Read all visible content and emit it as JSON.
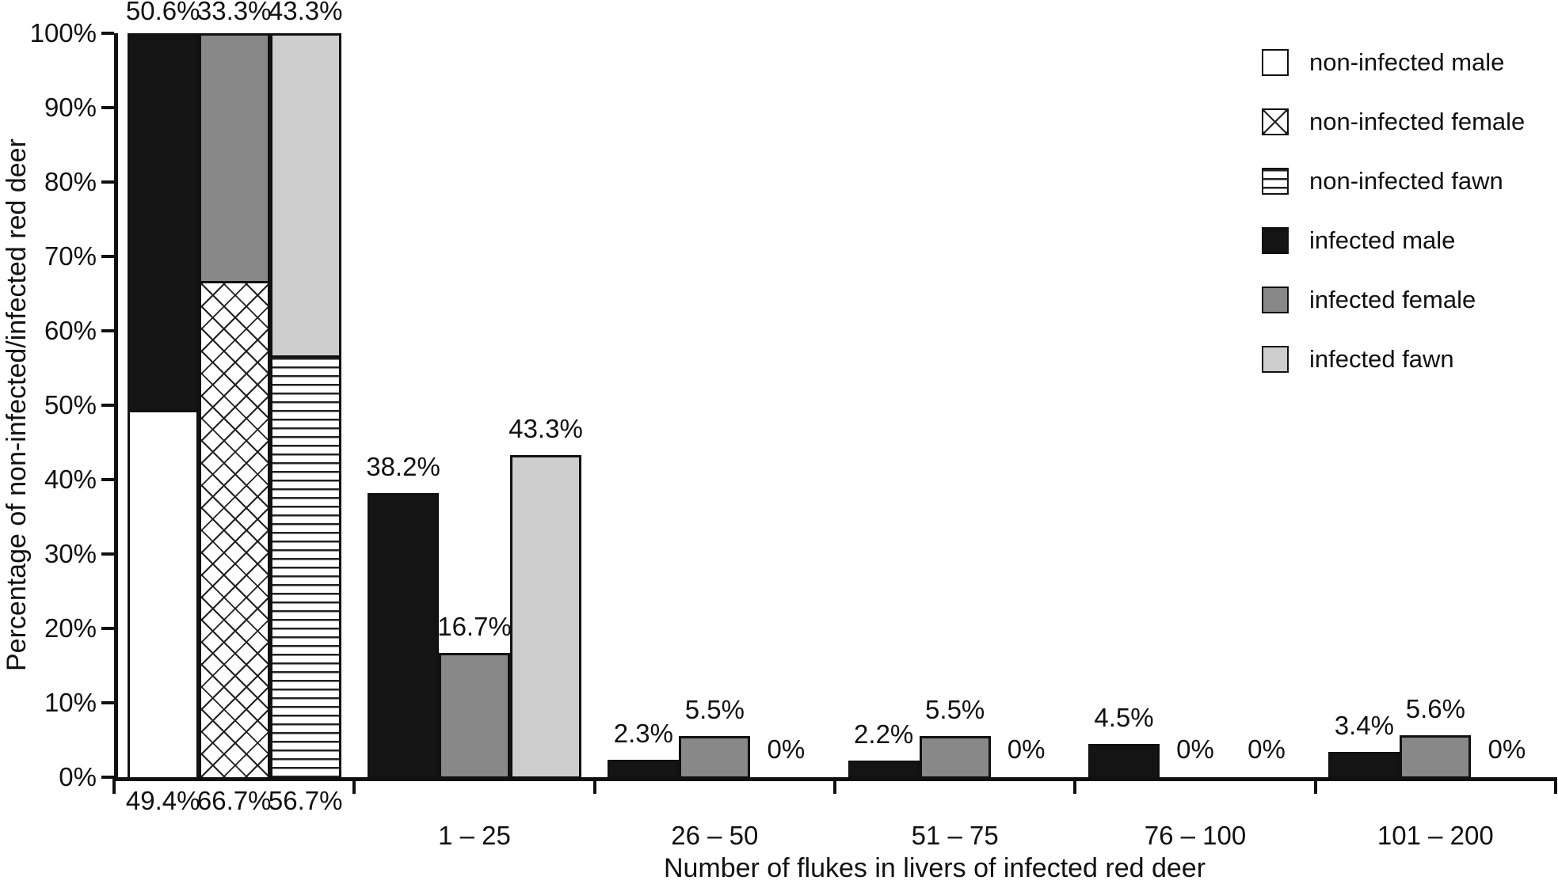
{
  "figure": {
    "ylabel": "Percentage of non-infected/infected red deer",
    "xlabel": "Number of flukes in livers of infected red deer"
  },
  "legend": {
    "items": [
      {
        "series": "non-infected male",
        "label": "non-infected male"
      },
      {
        "series": "non-infected female",
        "label": "non-infected female"
      },
      {
        "series": "non-infected fawn",
        "label": "non-infected fawn"
      },
      {
        "series": "infected male",
        "label": "infected male"
      },
      {
        "series": "infected female",
        "label": "infected female"
      },
      {
        "series": "infected fawn",
        "label": "infected fawn"
      }
    ]
  },
  "chart_data": {
    "type": "bar",
    "title": "",
    "xlabel": "Number of flukes in livers of infected red deer",
    "ylabel": "Percentage of non-infected/infected red deer",
    "ylim": [
      0,
      100
    ],
    "grid": false,
    "legend_position": "top-right",
    "yticks": [
      "0%",
      "10%",
      "20%",
      "30%",
      "40%",
      "50%",
      "60%",
      "70%",
      "80%",
      "90%",
      "100%"
    ],
    "series_styles": {
      "non-infected male": {
        "pattern": "solid",
        "color": "#ffffff"
      },
      "non-infected female": {
        "pattern": "crosshatch",
        "color": "#000000"
      },
      "non-infected fawn": {
        "pattern": "hlines",
        "color": "#000000"
      },
      "infected male": {
        "pattern": "solid",
        "color": "#141414"
      },
      "infected female": {
        "pattern": "solid",
        "color": "#888888"
      },
      "infected fawn": {
        "pattern": "solid",
        "color": "#cecece"
      }
    },
    "groups": [
      {
        "label": "",
        "stacked": true,
        "bars": [
          {
            "name": "male",
            "segments": [
              {
                "series": "non-infected male",
                "value": 49.4
              },
              {
                "series": "infected male",
                "value": 50.6
              }
            ],
            "label_above": "50.6%",
            "label_below": "49.4%"
          },
          {
            "name": "female",
            "segments": [
              {
                "series": "non-infected female",
                "value": 66.7
              },
              {
                "series": "infected female",
                "value": 33.3
              }
            ],
            "label_above": "33.3%",
            "label_below": "66.7%"
          },
          {
            "name": "fawn",
            "segments": [
              {
                "series": "non-infected fawn",
                "value": 56.7
              },
              {
                "series": "infected fawn",
                "value": 43.3
              }
            ],
            "label_above": "43.3%",
            "label_below": "56.7%"
          }
        ]
      },
      {
        "label": "1 – 25",
        "bars": [
          {
            "series": "infected male",
            "value": 38.2,
            "label": "38.2%"
          },
          {
            "series": "infected female",
            "value": 16.7,
            "label": "16.7%"
          },
          {
            "series": "infected fawn",
            "value": 43.3,
            "label": "43.3%"
          }
        ]
      },
      {
        "label": "26 – 50",
        "bars": [
          {
            "series": "infected male",
            "value": 2.3,
            "label": "2.3%"
          },
          {
            "series": "infected female",
            "value": 5.5,
            "label": "5.5%"
          },
          {
            "series": "infected fawn",
            "value": 0,
            "label": "0%"
          }
        ]
      },
      {
        "label": "51 – 75",
        "bars": [
          {
            "series": "infected male",
            "value": 2.2,
            "label": "2.2%"
          },
          {
            "series": "infected female",
            "value": 5.5,
            "label": "5.5%"
          },
          {
            "series": "infected fawn",
            "value": 0,
            "label": "0%"
          }
        ]
      },
      {
        "label": "76 – 100",
        "bars": [
          {
            "series": "infected male",
            "value": 4.5,
            "label": "4.5%"
          },
          {
            "series": "infected female",
            "value": 0,
            "label": "0%"
          },
          {
            "series": "infected fawn",
            "value": 0,
            "label": "0%"
          }
        ]
      },
      {
        "label": "101 – 200",
        "bars": [
          {
            "series": "infected male",
            "value": 3.4,
            "label": "3.4%"
          },
          {
            "series": "infected female",
            "value": 5.6,
            "label": "5.6%"
          },
          {
            "series": "infected fawn",
            "value": 0,
            "label": "0%"
          }
        ]
      }
    ]
  }
}
